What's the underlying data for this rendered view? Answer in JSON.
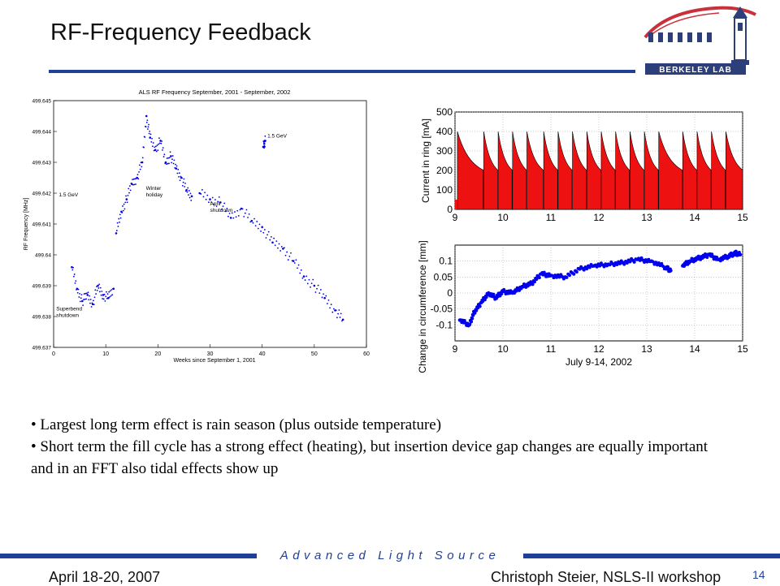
{
  "slide": {
    "title": "RF-Frequency Feedback",
    "logo_text": "BERKELEY LAB",
    "bullets": [
      "• Largest long term effect is rain season (plus outside temperature)",
      "• Short term the fill cycle has a strong effect (heating), but insertion device gap changes are equally important and in an FFT also tidal effects show up"
    ],
    "footer_tag": "Advanced Light Source",
    "footer_date": "April 18-20, 2007",
    "footer_author": "Christoph Steier, NSLS-II workshop",
    "page_number": "14"
  },
  "colors": {
    "accent": "#1f3f99",
    "plot_blue": "#0000ee",
    "fill_red": "#ee1111",
    "logo_red": "#c8313a"
  },
  "chart_data": [
    {
      "type": "scatter",
      "title": "ALS RF Frequency September, 2001 - September, 2002",
      "xlabel": "Weeks since September 1, 2001",
      "ylabel": "RF Frequency [MHz]",
      "xlim": [
        0,
        60
      ],
      "ylim": [
        499.637,
        499.645
      ],
      "xticks": [
        "0",
        "10",
        "20",
        "30",
        "40",
        "50",
        "60"
      ],
      "yticks": [
        "499.637",
        "499.638",
        "499.639",
        "499.64",
        "499.641",
        "499.642",
        "499.643",
        "499.644",
        "499.645"
      ],
      "annotations": [
        {
          "text": "1.5 GeV",
          "x": 1,
          "y": 499.6419
        },
        {
          "text": "Winter holiday",
          "x": 17.7,
          "y": 499.6421
        },
        {
          "text": "April shutdown",
          "x": 30,
          "y": 499.6416
        },
        {
          "text": "1.5 GeV",
          "x": 41,
          "y": 499.6438
        },
        {
          "text": "Superbend shutdown",
          "x": 0.5,
          "y": 499.6382
        }
      ],
      "series": [
        {
          "x": [
            3.5,
            4.5,
            5.5,
            6.5,
            7.5,
            8.5,
            9.5,
            10.5,
            11.5
          ],
          "y": [
            499.6396,
            499.6389,
            499.6385,
            499.6387,
            499.6384,
            499.639,
            499.6387,
            499.6386,
            499.6389
          ]
        },
        {
          "x": [
            12,
            13,
            14,
            15,
            16,
            17,
            17.8,
            18.5,
            19.5,
            20.5,
            21.5,
            22.5,
            23.5,
            24.5,
            25.5,
            26.5
          ],
          "y": [
            499.6407,
            499.6414,
            499.6418,
            499.6423,
            499.6425,
            499.643,
            499.6445,
            499.6438,
            499.6434,
            499.6437,
            499.643,
            499.6432,
            499.6428,
            499.6425,
            499.6421,
            499.6419
          ]
        },
        {
          "x": [
            28,
            30,
            32,
            34,
            36,
            38,
            40,
            42,
            44,
            46,
            48,
            50,
            52,
            54,
            55.5
          ],
          "y": [
            499.642,
            499.6418,
            499.6417,
            499.6412,
            499.6415,
            499.6411,
            499.6409,
            499.6404,
            499.6402,
            499.6398,
            499.6393,
            499.639,
            499.6386,
            499.6382,
            499.6379
          ]
        },
        {
          "x": [
            40.2,
            40.4,
            40.6
          ],
          "y": [
            499.6435,
            499.6436,
            499.6437
          ]
        }
      ]
    },
    {
      "type": "area",
      "ylabel": "Current in ring [mA]",
      "xlim": [
        9,
        15
      ],
      "ylim": [
        0,
        500
      ],
      "xticks": [
        "9",
        "10",
        "11",
        "12",
        "13",
        "14",
        "15"
      ],
      "yticks": [
        "0",
        "100",
        "200",
        "300",
        "400",
        "500"
      ],
      "fill_times": [
        9.05,
        9.6,
        9.9,
        10.2,
        10.5,
        10.85,
        11.15,
        11.45,
        11.75,
        12.05,
        12.35,
        12.65,
        12.95,
        13.25,
        13.75,
        14.05,
        14.35,
        14.65
      ],
      "peak_mA": 400,
      "decay_to_mA": 200
    },
    {
      "type": "scatter",
      "xlabel": "July 9-14, 2002",
      "ylabel": "Change in circumference [mm]",
      "xlim": [
        9,
        15
      ],
      "ylim": [
        -0.15,
        0.15
      ],
      "xticks": [
        "9",
        "10",
        "11",
        "12",
        "13",
        "14",
        "15"
      ],
      "yticks": [
        "-0.1",
        "-0.05",
        "0",
        "0.05",
        "0.1"
      ],
      "series": [
        {
          "x": [
            9.1,
            9.3,
            9.4,
            9.55,
            9.7,
            9.85,
            10.0,
            10.2,
            10.4,
            10.6,
            10.8,
            11.0,
            11.3,
            11.6,
            11.9,
            12.2,
            12.5,
            12.8,
            13.1,
            13.4,
            13.5
          ],
          "y": [
            -0.085,
            -0.1,
            -0.06,
            -0.03,
            0.0,
            -0.015,
            0.005,
            0.0,
            0.02,
            0.03,
            0.06,
            0.055,
            0.05,
            0.075,
            0.085,
            0.09,
            0.095,
            0.105,
            0.1,
            0.08,
            0.07
          ]
        },
        {
          "x": [
            13.75,
            13.9,
            14.1,
            14.3,
            14.5,
            14.7,
            14.85,
            14.95
          ],
          "y": [
            0.085,
            0.1,
            0.11,
            0.12,
            0.105,
            0.115,
            0.125,
            0.12
          ]
        }
      ]
    }
  ]
}
